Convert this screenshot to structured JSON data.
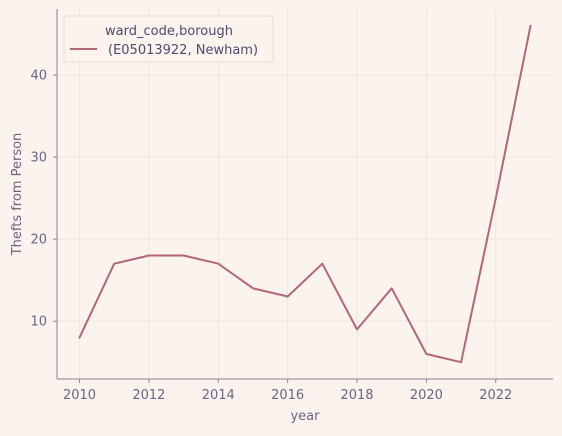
{
  "chart_data": {
    "type": "line",
    "title": "",
    "xlabel": "year",
    "ylabel": "Thefts from Person",
    "x": [
      2010,
      2011,
      2012,
      2013,
      2014,
      2015,
      2016,
      2017,
      2018,
      2019,
      2020,
      2021,
      2022,
      2023
    ],
    "series": [
      {
        "name": "(E05013922, Newham)",
        "color": "#b5657a",
        "values": [
          8,
          17,
          18,
          18,
          17,
          14,
          13,
          17,
          9,
          14,
          6,
          5,
          25,
          46
        ]
      }
    ],
    "xlim": [
      2009.35,
      2023.65
    ],
    "ylim": [
      2.95,
      48.05
    ],
    "xticks": [
      2010,
      2012,
      2014,
      2016,
      2018,
      2020,
      2022
    ],
    "yticks": [
      10,
      20,
      30,
      40
    ],
    "grid": true,
    "legend": {
      "title": "ward_code,borough",
      "position": "top-left"
    },
    "colors": {
      "background": "#fbf4ee",
      "grid": "#f3e6da",
      "axis": "#8a8298",
      "text": "#6b6484",
      "legend_text": "#4f4a6e"
    }
  }
}
